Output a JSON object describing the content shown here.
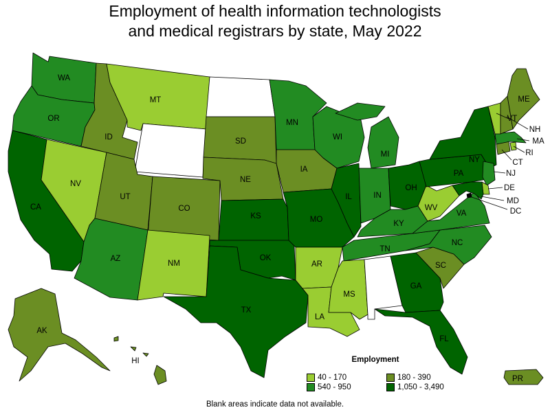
{
  "title_line1": "Employment of health information technologists",
  "title_line2": "and medical registrars by state, May 2022",
  "legend": {
    "title": "Employment",
    "items": [
      {
        "label": "40 - 170",
        "color": "#9acd32"
      },
      {
        "label": "180 - 390",
        "color": "#6b8e23"
      },
      {
        "label": "540 - 950",
        "color": "#228b22"
      },
      {
        "label": "1,050 - 3,490",
        "color": "#006400"
      }
    ]
  },
  "note": "Blank areas indicate data not available.",
  "states": {
    "WA": {
      "label": "WA",
      "color": "#228b22"
    },
    "OR": {
      "label": "OR",
      "color": "#228b22"
    },
    "CA": {
      "label": "CA",
      "color": "#006400"
    },
    "NV": {
      "label": "NV",
      "color": "#9acd32"
    },
    "ID": {
      "label": "ID",
      "color": "#6b8e23"
    },
    "MT": {
      "label": "MT",
      "color": "#9acd32"
    },
    "WY": {
      "label": "",
      "color": "#ffffff"
    },
    "UT": {
      "label": "UT",
      "color": "#6b8e23"
    },
    "CO": {
      "label": "CO",
      "color": "#6b8e23"
    },
    "AZ": {
      "label": "AZ",
      "color": "#228b22"
    },
    "NM": {
      "label": "NM",
      "color": "#9acd32"
    },
    "ND": {
      "label": "",
      "color": "#ffffff"
    },
    "SD": {
      "label": "SD",
      "color": "#6b8e23"
    },
    "NE": {
      "label": "NE",
      "color": "#6b8e23"
    },
    "KS": {
      "label": "KS",
      "color": "#006400"
    },
    "OK": {
      "label": "OK",
      "color": "#006400"
    },
    "TX": {
      "label": "TX",
      "color": "#006400"
    },
    "MN": {
      "label": "MN",
      "color": "#228b22"
    },
    "IA": {
      "label": "IA",
      "color": "#6b8e23"
    },
    "MO": {
      "label": "MO",
      "color": "#006400"
    },
    "AR": {
      "label": "AR",
      "color": "#9acd32"
    },
    "LA": {
      "label": "LA",
      "color": "#9acd32"
    },
    "WI": {
      "label": "WI",
      "color": "#228b22"
    },
    "IL": {
      "label": "IL",
      "color": "#006400"
    },
    "MI": {
      "label": "MI",
      "color": "#228b22"
    },
    "IN": {
      "label": "IN",
      "color": "#228b22"
    },
    "OH": {
      "label": "OH",
      "color": "#006400"
    },
    "KY": {
      "label": "KY",
      "color": "#228b22"
    },
    "TN": {
      "label": "TN",
      "color": "#228b22"
    },
    "MS": {
      "label": "MS",
      "color": "#9acd32"
    },
    "AL": {
      "label": "",
      "color": "#ffffff"
    },
    "GA": {
      "label": "GA",
      "color": "#006400"
    },
    "FL": {
      "label": "FL",
      "color": "#006400"
    },
    "SC": {
      "label": "SC",
      "color": "#6b8e23"
    },
    "NC": {
      "label": "NC",
      "color": "#228b22"
    },
    "VA": {
      "label": "VA",
      "color": "#228b22"
    },
    "WV": {
      "label": "WV",
      "color": "#9acd32"
    },
    "PA": {
      "label": "PA",
      "color": "#006400"
    },
    "NY": {
      "label": "NY",
      "color": "#006400"
    },
    "NJ": {
      "label": "NJ",
      "color": "#228b22"
    },
    "DE": {
      "label": "DE",
      "color": "#9acd32"
    },
    "MD": {
      "label": "MD",
      "color": "#006400"
    },
    "DC": {
      "label": "DC",
      "color": "#000000"
    },
    "CT": {
      "label": "CT",
      "color": "#6b8e23"
    },
    "RI": {
      "label": "RI",
      "color": "#9acd32"
    },
    "MA": {
      "label": "MA",
      "color": "#228b22"
    },
    "VT": {
      "label": "VT",
      "color": "#9acd32"
    },
    "NH": {
      "label": "NH",
      "color": "#6b8e23"
    },
    "ME": {
      "label": "ME",
      "color": "#6b8e23"
    },
    "AK": {
      "label": "AK",
      "color": "#6b8e23"
    },
    "HI": {
      "label": "HI",
      "color": "#6b8e23"
    },
    "PR": {
      "label": "PR",
      "color": "#6b8e23"
    }
  }
}
